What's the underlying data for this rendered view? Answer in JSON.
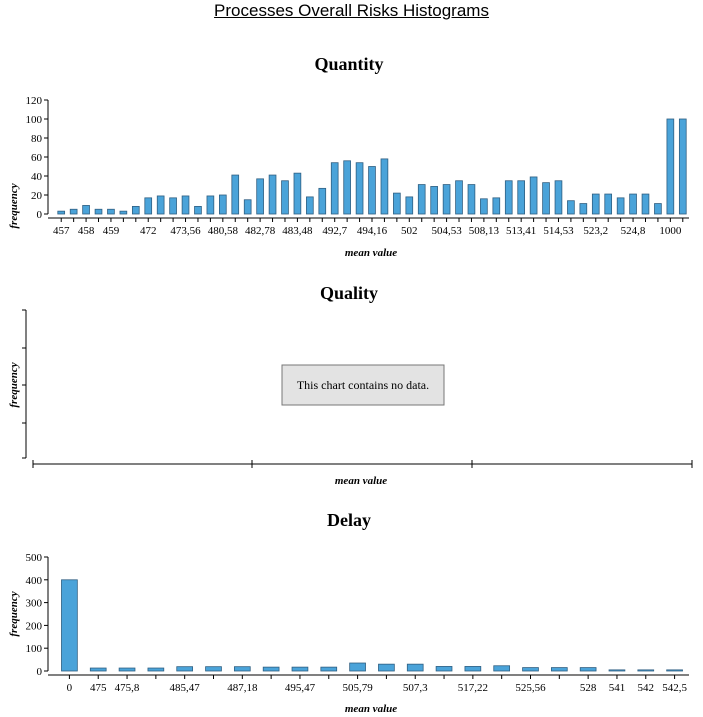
{
  "page": {
    "title": "Processes Overall Risks Histograms"
  },
  "chart_data": [
    {
      "type": "bar",
      "title": "Quantity",
      "xlabel": "mean value",
      "ylabel": "frequency",
      "ylim": [
        0,
        120
      ],
      "yticks": [
        0,
        20,
        40,
        60,
        80,
        100,
        120
      ],
      "values": [
        3,
        5,
        9,
        5,
        5,
        3,
        8,
        17,
        19,
        17,
        19,
        8,
        19,
        20,
        41,
        15,
        37,
        41,
        35,
        43,
        18,
        27,
        54,
        56,
        54,
        50,
        58,
        22,
        18,
        31,
        29,
        31,
        35,
        31,
        16,
        17,
        35,
        35,
        39,
        33,
        35,
        14,
        11,
        21,
        21,
        17,
        21,
        21,
        11,
        100,
        100
      ],
      "xtick_labels": [
        {
          "bar": 0,
          "label": "457"
        },
        {
          "bar": 2,
          "label": "458"
        },
        {
          "bar": 4,
          "label": "459"
        },
        {
          "bar": 7,
          "label": "472"
        },
        {
          "bar": 10,
          "label": "473,56"
        },
        {
          "bar": 13,
          "label": "480,58"
        },
        {
          "bar": 16,
          "label": "482,78"
        },
        {
          "bar": 19,
          "label": "483,48"
        },
        {
          "bar": 22,
          "label": "492,7"
        },
        {
          "bar": 25,
          "label": "494,16"
        },
        {
          "bar": 28,
          "label": "502"
        },
        {
          "bar": 31,
          "label": "504,53"
        },
        {
          "bar": 34,
          "label": "508,13"
        },
        {
          "bar": 37,
          "label": "513,41"
        },
        {
          "bar": 40,
          "label": "514,53"
        },
        {
          "bar": 43,
          "label": "523,2"
        },
        {
          "bar": 46,
          "label": "524,8"
        },
        {
          "bar": 49,
          "label": "1000"
        }
      ]
    },
    {
      "type": "bar",
      "title": "Quality",
      "xlabel": "mean value",
      "ylabel": "frequency",
      "values": [],
      "no_data_message": "This chart contains no data."
    },
    {
      "type": "bar",
      "title": "Delay",
      "xlabel": "mean value",
      "ylabel": "frequency",
      "ylim": [
        0,
        500
      ],
      "yticks": [
        0,
        100,
        200,
        300,
        400,
        500
      ],
      "values": [
        400,
        13,
        13,
        13,
        19,
        19,
        19,
        17,
        17,
        17,
        35,
        30,
        30,
        20,
        20,
        23,
        15,
        15,
        15,
        5,
        5,
        5
      ],
      "xtick_labels": [
        {
          "bar": 0,
          "label": "0"
        },
        {
          "bar": 1,
          "label": "475"
        },
        {
          "bar": 2,
          "label": "475,8"
        },
        {
          "bar": 4,
          "label": "485,47"
        },
        {
          "bar": 6,
          "label": "487,18"
        },
        {
          "bar": 8,
          "label": "495,47"
        },
        {
          "bar": 10,
          "label": "505,79"
        },
        {
          "bar": 12,
          "label": "507,3"
        },
        {
          "bar": 14,
          "label": "517,22"
        },
        {
          "bar": 16,
          "label": "525,56"
        },
        {
          "bar": 18,
          "label": "528"
        },
        {
          "bar": 19,
          "label": "541"
        },
        {
          "bar": 20,
          "label": "542"
        },
        {
          "bar": 21,
          "label": "542,5"
        }
      ]
    }
  ]
}
